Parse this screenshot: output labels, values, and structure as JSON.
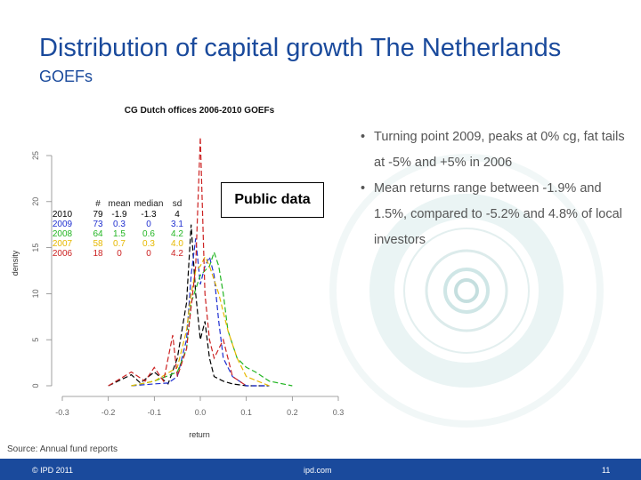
{
  "slide": {
    "title": "Distribution of capital growth The Netherlands",
    "subtitle": "GOEFs",
    "source": "Source: Annual fund reports",
    "callout": "Public data",
    "bullets": [
      "Turning point 2009, peaks at 0% cg, fat tails at -5% and +5% in 2006",
      "Mean returns range between -1.9% and 1.5%, compared to -5.2% and 4.8% of local investors"
    ],
    "footer": {
      "copyright": "© IPD 2011",
      "site": "ipd.com",
      "page": "11"
    }
  },
  "colors": {
    "brand": "#1a4a9c",
    "footer_text": "#ffffff"
  },
  "chart_data": {
    "type": "line",
    "title": "CG Dutch offices 2006-2010 GOEFs",
    "xlabel": "return",
    "ylabel": "density",
    "xlim": [
      -0.3,
      0.3
    ],
    "ylim": [
      0,
      27
    ],
    "x_ticks": [
      -0.3,
      -0.2,
      -0.1,
      0.0,
      0.1,
      0.2,
      0.3
    ],
    "x_tick_labels": [
      "-0.3",
      "-0.2",
      "-0.1",
      "0.0",
      "0.1",
      "0.2",
      "0.3"
    ],
    "y_ticks": [
      0,
      5,
      10,
      15,
      20,
      25
    ],
    "y_tick_labels": [
      "0",
      "5",
      "10",
      "15",
      "20",
      "25"
    ],
    "legend": {
      "placement": "top-left",
      "headers": [
        "",
        "#",
        "mean",
        "median",
        "sd"
      ],
      "rows": [
        {
          "year": "2010",
          "n": "79",
          "mean": "-1.9",
          "median": "-1.3",
          "sd": "4",
          "color": "#000000"
        },
        {
          "year": "2009",
          "n": "73",
          "mean": "0.3",
          "median": "0",
          "sd": "3.1",
          "color": "#1f2fd0"
        },
        {
          "year": "2008",
          "n": "64",
          "mean": "1.5",
          "median": "0.6",
          "sd": "4.2",
          "color": "#22b522"
        },
        {
          "year": "2007",
          "n": "58",
          "mean": "0.7",
          "median": "0.3",
          "sd": "4.0",
          "color": "#e6b800"
        },
        {
          "year": "2006",
          "n": "18",
          "mean": "0",
          "median": "0",
          "sd": "4.2",
          "color": "#cc2222"
        }
      ]
    },
    "series": [
      {
        "name": "2010",
        "color": "#000000",
        "x": [
          -0.2,
          -0.15,
          -0.13,
          -0.1,
          -0.07,
          -0.05,
          -0.03,
          -0.02,
          -0.01,
          0.0,
          0.01,
          0.02,
          0.03,
          0.05,
          0.07,
          0.1,
          0.15
        ],
        "y": [
          0,
          1.2,
          0.3,
          1.5,
          0.2,
          3,
          9,
          17.5,
          10,
          5,
          7,
          3,
          1,
          0.5,
          0.2,
          0,
          0
        ]
      },
      {
        "name": "2009",
        "color": "#1f2fd0",
        "x": [
          -0.15,
          -0.1,
          -0.07,
          -0.05,
          -0.03,
          -0.02,
          -0.01,
          0.0,
          0.01,
          0.02,
          0.03,
          0.04,
          0.05,
          0.07,
          0.1,
          0.15
        ],
        "y": [
          0,
          0.2,
          0.3,
          1,
          5,
          12,
          16,
          11,
          13,
          14,
          12,
          7,
          3,
          1,
          0,
          0
        ]
      },
      {
        "name": "2008",
        "color": "#22b522",
        "x": [
          -0.15,
          -0.1,
          -0.05,
          -0.03,
          -0.02,
          0.0,
          0.02,
          0.03,
          0.04,
          0.05,
          0.06,
          0.08,
          0.1,
          0.12,
          0.15,
          0.2
        ],
        "y": [
          0,
          0.5,
          1.5,
          4,
          9,
          12,
          13,
          14.5,
          13,
          10,
          6,
          3,
          2,
          1.5,
          0.5,
          0
        ]
      },
      {
        "name": "2007",
        "color": "#e6b800",
        "x": [
          -0.15,
          -0.1,
          -0.05,
          -0.03,
          -0.02,
          -0.01,
          0.0,
          0.01,
          0.02,
          0.03,
          0.04,
          0.05,
          0.06,
          0.08,
          0.1,
          0.15
        ],
        "y": [
          0,
          0.5,
          2,
          6,
          10,
          12.5,
          13,
          14,
          13,
          11.5,
          10,
          8,
          6,
          3,
          1,
          0
        ]
      },
      {
        "name": "2006",
        "color": "#cc2222",
        "x": [
          -0.2,
          -0.15,
          -0.12,
          -0.1,
          -0.08,
          -0.06,
          -0.05,
          -0.03,
          -0.01,
          0.0,
          0.01,
          0.02,
          0.03,
          0.05,
          0.07,
          0.1
        ],
        "y": [
          0,
          1.5,
          0.5,
          2,
          0.5,
          5.5,
          1,
          4,
          13,
          27,
          10,
          5,
          3,
          5,
          1,
          0
        ]
      }
    ]
  }
}
